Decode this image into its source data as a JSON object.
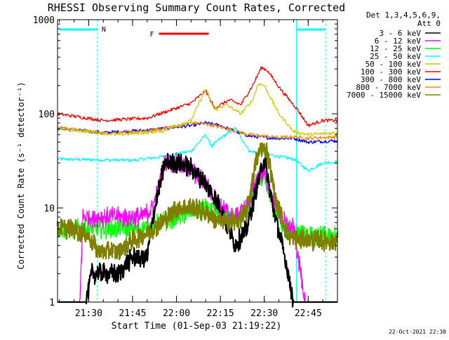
{
  "chart_data": {
    "type": "line",
    "title": "RHESSI Observing Summary Count Rates, Corrected",
    "xlabel": "Start Time (01-Sep-03 21:19:22)",
    "ylabel": "Corrected Count Rate (s⁻¹ detector⁻¹)",
    "ylog": true,
    "ylim": [
      1,
      1000
    ],
    "xlim": [
      "21:19:22",
      "22:55:00"
    ],
    "x_ticks": [
      "21:30",
      "21:45",
      "22:00",
      "22:15",
      "22:30",
      "22:45"
    ],
    "y_ticks": [
      "1",
      "10",
      "100",
      "1000"
    ],
    "grid": false,
    "legend_position": "right",
    "legend_header": [
      "Det 1,3,4,5,6,9,",
      "Att 0"
    ],
    "footer_date": "22-Oct-2021 22:30",
    "annotations": {
      "night_label": "N",
      "flare_label": "F",
      "night_color": "#00ffff",
      "flare_color": "#ff0000",
      "night_before_end": "21:33",
      "night_after_start": "22:41",
      "flare_interval": [
        "21:54",
        "22:11"
      ]
    },
    "series": [
      {
        "name": "3 - 6 keV",
        "color": "#000000",
        "points": [
          [
            "21:19:22",
            1.0
          ],
          [
            "21:29",
            1.0
          ],
          [
            "21:31",
            2.0
          ],
          [
            "21:35",
            2.0
          ],
          [
            "21:40",
            2.0
          ],
          [
            "21:45",
            3.0
          ],
          [
            "21:50",
            3.0
          ],
          [
            "21:52",
            8.0
          ],
          [
            "21:56",
            30
          ],
          [
            "22:00",
            30
          ],
          [
            "22:05",
            27
          ],
          [
            "22:10",
            18
          ],
          [
            "22:15",
            10
          ],
          [
            "22:20",
            4
          ],
          [
            "22:24",
            6
          ],
          [
            "22:28",
            20
          ],
          [
            "22:30",
            33
          ],
          [
            "22:33",
            10
          ],
          [
            "22:37",
            3
          ],
          [
            "22:40",
            1.0
          ],
          [
            "22:55",
            1.0
          ]
        ]
      },
      {
        "name": "6 - 12 keV",
        "color": "#ff00ff",
        "points": [
          [
            "21:19:22",
            1.0
          ],
          [
            "21:27",
            1.0
          ],
          [
            "21:28",
            8.0
          ],
          [
            "21:40",
            8.0
          ],
          [
            "21:48",
            8.0
          ],
          [
            "21:52",
            10
          ],
          [
            "21:56",
            30
          ],
          [
            "22:00",
            30
          ],
          [
            "22:05",
            25
          ],
          [
            "22:10",
            18
          ],
          [
            "22:15",
            10
          ],
          [
            "22:20",
            8
          ],
          [
            "22:24",
            10
          ],
          [
            "22:28",
            22
          ],
          [
            "22:30",
            24
          ],
          [
            "22:33",
            12
          ],
          [
            "22:37",
            7
          ],
          [
            "22:40",
            6
          ],
          [
            "22:44",
            1.0
          ],
          [
            "22:55",
            1.0
          ]
        ]
      },
      {
        "name": "12 - 25 keV",
        "color": "#00ff00",
        "points": [
          [
            "21:19:22",
            6.0
          ],
          [
            "21:30",
            6.0
          ],
          [
            "21:40",
            6.0
          ],
          [
            "21:48",
            6.0
          ],
          [
            "21:55",
            7
          ],
          [
            "22:05",
            9
          ],
          [
            "22:10",
            10
          ],
          [
            "22:15",
            9
          ],
          [
            "22:20",
            8
          ],
          [
            "22:24",
            9
          ],
          [
            "22:28",
            20
          ],
          [
            "22:30",
            22
          ],
          [
            "22:33",
            10
          ],
          [
            "22:37",
            6
          ],
          [
            "22:45",
            5
          ],
          [
            "22:55",
            5
          ]
        ]
      },
      {
        "name": "25 - 50 keV",
        "color": "#00ffff",
        "points": [
          [
            "21:19:22",
            33
          ],
          [
            "21:45",
            32
          ],
          [
            "21:55",
            35
          ],
          [
            "22:05",
            40
          ],
          [
            "22:10",
            60
          ],
          [
            "22:12",
            45
          ],
          [
            "22:15",
            55
          ],
          [
            "22:20",
            70
          ],
          [
            "22:25",
            40
          ],
          [
            "22:30",
            38
          ],
          [
            "22:35",
            35
          ],
          [
            "22:40",
            33
          ],
          [
            "22:45",
            25
          ],
          [
            "22:50",
            30
          ],
          [
            "22:55",
            31
          ]
        ]
      },
      {
        "name": "50 - 100 keV",
        "color": "#cccc00",
        "points": [
          [
            "21:19:22",
            70
          ],
          [
            "21:40",
            60
          ],
          [
            "21:55",
            65
          ],
          [
            "22:05",
            85
          ],
          [
            "22:10",
            185
          ],
          [
            "22:13",
            110
          ],
          [
            "22:17",
            125
          ],
          [
            "22:22",
            100
          ],
          [
            "22:26",
            140
          ],
          [
            "22:28",
            210
          ],
          [
            "22:30",
            200
          ],
          [
            "22:35",
            100
          ],
          [
            "22:40",
            65
          ],
          [
            "22:45",
            60
          ],
          [
            "22:55",
            63
          ]
        ]
      },
      {
        "name": "100 - 300 keV",
        "color": "#ff0000",
        "points": [
          [
            "21:19:22",
            100
          ],
          [
            "21:35",
            85
          ],
          [
            "21:50",
            90
          ],
          [
            "22:05",
            130
          ],
          [
            "22:10",
            175
          ],
          [
            "22:13",
            115
          ],
          [
            "22:18",
            140
          ],
          [
            "22:22",
            125
          ],
          [
            "22:26",
            200
          ],
          [
            "22:29",
            310
          ],
          [
            "22:31",
            290
          ],
          [
            "22:36",
            175
          ],
          [
            "22:41",
            115
          ],
          [
            "22:45",
            75
          ],
          [
            "22:50",
            85
          ],
          [
            "22:55",
            85
          ]
        ]
      },
      {
        "name": "300 - 800 keV",
        "color": "#0000ff",
        "points": [
          [
            "21:19:22",
            70
          ],
          [
            "21:35",
            63
          ],
          [
            "21:50",
            67
          ],
          [
            "22:05",
            75
          ],
          [
            "22:10",
            80
          ],
          [
            "22:15",
            75
          ],
          [
            "22:20",
            65
          ],
          [
            "22:25",
            58
          ],
          [
            "22:30",
            56
          ],
          [
            "22:35",
            55
          ],
          [
            "22:40",
            55
          ],
          [
            "22:45",
            50
          ],
          [
            "22:55",
            52
          ]
        ]
      },
      {
        "name": "800 - 7000 keV",
        "color": "#ff8800",
        "points": [
          [
            "21:19:22",
            72
          ],
          [
            "21:35",
            62
          ],
          [
            "21:50",
            65
          ],
          [
            "22:05",
            80
          ],
          [
            "22:10",
            78
          ],
          [
            "22:15",
            72
          ],
          [
            "22:20",
            66
          ],
          [
            "22:25",
            60
          ],
          [
            "22:30",
            58
          ],
          [
            "22:35",
            56
          ],
          [
            "22:40",
            57
          ],
          [
            "22:45",
            55
          ],
          [
            "22:55",
            57
          ]
        ]
      },
      {
        "name": "7000 - 15000 keV",
        "color": "#808000",
        "points": [
          [
            "21:19:22",
            6
          ],
          [
            "21:25",
            6
          ],
          [
            "21:30",
            5
          ],
          [
            "21:33",
            3.5
          ],
          [
            "21:40",
            3.5
          ],
          [
            "21:45",
            4.5
          ],
          [
            "21:50",
            5.5
          ],
          [
            "21:55",
            7
          ],
          [
            "22:00",
            10
          ],
          [
            "22:05",
            10
          ],
          [
            "22:10",
            9
          ],
          [
            "22:15",
            7
          ],
          [
            "22:20",
            7
          ],
          [
            "22:24",
            9
          ],
          [
            "22:27",
            30
          ],
          [
            "22:29",
            45
          ],
          [
            "22:31",
            40
          ],
          [
            "22:34",
            12
          ],
          [
            "22:38",
            5
          ],
          [
            "22:42",
            4.5
          ],
          [
            "22:55",
            4.5
          ]
        ]
      }
    ]
  }
}
